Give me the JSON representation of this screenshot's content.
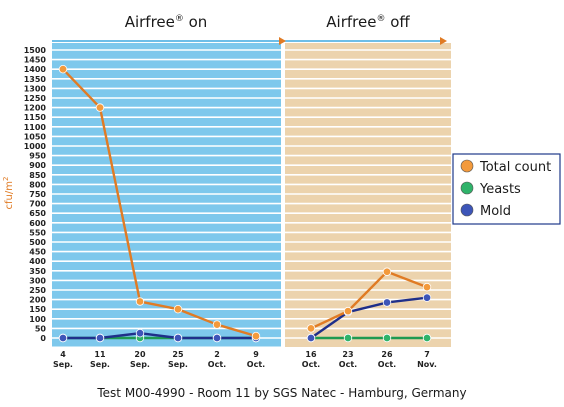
{
  "chart_data": {
    "type": "line",
    "caption": "Test M00-4990 - Room 11 by SGS Natec - Hamburg, Germany",
    "ylabel": "cfu/m",
    "ylabel_sup": "2",
    "ylim": [
      0,
      1500
    ],
    "y_ticks": [
      "0",
      "50",
      "100",
      "150",
      "200",
      "250",
      "300",
      "350",
      "400",
      "450",
      "500",
      "550",
      "600",
      "650",
      "700",
      "750",
      "800",
      "850",
      "900",
      "950",
      "1000",
      "1050",
      "1100",
      "1150",
      "1200",
      "1250",
      "1300",
      "1350",
      "1400",
      "1450",
      "1500"
    ],
    "periods": [
      {
        "label": "Airfree",
        "mark": "®",
        "state": "on",
        "color": "#7ec8ec",
        "categories": [
          [
            "4",
            "Sep."
          ],
          [
            "11",
            "Sep."
          ],
          [
            "20",
            "Sep."
          ],
          [
            "25",
            "Sep."
          ],
          [
            "2",
            "Oct."
          ],
          [
            "9",
            "Oct."
          ]
        ]
      },
      {
        "label": "Airfree",
        "mark": "®",
        "state": "off",
        "color": "#ecd3ad",
        "categories": [
          [
            "16",
            "Oct."
          ],
          [
            "23",
            "Oct."
          ],
          [
            "26",
            "Oct."
          ],
          [
            "7",
            "Nov."
          ]
        ]
      }
    ],
    "series": [
      {
        "name": "Total count",
        "color": "#f39a3c",
        "line": "#e07b24",
        "values": [
          1400,
          1200,
          190,
          150,
          70,
          10,
          50,
          140,
          345,
          265
        ]
      },
      {
        "name": "Yeasts",
        "color": "#2fb36a",
        "line": "#1e9a52",
        "values": [
          0,
          0,
          0,
          0,
          0,
          0,
          0,
          0,
          0,
          0
        ]
      },
      {
        "name": "Mold",
        "color": "#3d55b8",
        "line": "#1f2f8a",
        "values": [
          0,
          0,
          25,
          0,
          0,
          0,
          0,
          135,
          185,
          210
        ]
      }
    ],
    "legend_position": "right"
  }
}
